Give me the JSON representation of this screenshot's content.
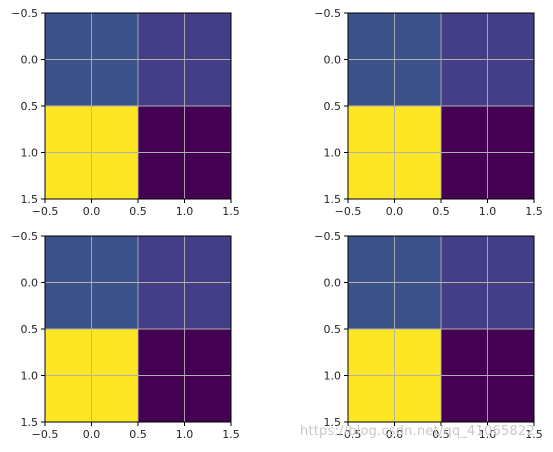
{
  "chart_data": [
    {
      "type": "heatmap",
      "title": "",
      "xlabel": "",
      "ylabel": "",
      "xlim": [
        -0.5,
        1.5
      ],
      "ylim": [
        1.5,
        -0.5
      ],
      "grid": true,
      "colormap": "viridis",
      "values": [
        [
          1,
          2
        ],
        [
          4,
          0
        ]
      ],
      "cell_colors": [
        [
          "#3b528b",
          "#433e85"
        ],
        [
          "#fde725",
          "#440154"
        ]
      ],
      "xticks": [
        "−0.5",
        "0.0",
        "0.5",
        "1.0",
        "1.5"
      ],
      "yticks": [
        "−0.5",
        "0.0",
        "0.5",
        "1.0",
        "1.5"
      ]
    },
    {
      "type": "heatmap",
      "title": "",
      "xlabel": "",
      "ylabel": "",
      "xlim": [
        -0.5,
        1.5
      ],
      "ylim": [
        1.5,
        -0.5
      ],
      "grid": true,
      "colormap": "viridis",
      "values": [
        [
          1,
          2
        ],
        [
          4,
          0
        ]
      ],
      "cell_colors": [
        [
          "#3b528b",
          "#433e85"
        ],
        [
          "#fde725",
          "#440154"
        ]
      ],
      "xticks": [
        "−0.5",
        "0.0",
        "0.5",
        "1.0",
        "1.5"
      ],
      "yticks": [
        "−0.5",
        "0.0",
        "0.5",
        "1.0",
        "1.5"
      ]
    },
    {
      "type": "heatmap",
      "title": "",
      "xlabel": "",
      "ylabel": "",
      "xlim": [
        -0.5,
        1.5
      ],
      "ylim": [
        1.5,
        -0.5
      ],
      "grid": true,
      "colormap": "viridis",
      "values": [
        [
          1,
          2
        ],
        [
          4,
          0
        ]
      ],
      "cell_colors": [
        [
          "#3b528b",
          "#433e85"
        ],
        [
          "#fde725",
          "#440154"
        ]
      ],
      "xticks": [
        "−0.5",
        "0.0",
        "0.5",
        "1.0",
        "1.5"
      ],
      "yticks": [
        "−0.5",
        "0.0",
        "0.5",
        "1.0",
        "1.5"
      ]
    },
    {
      "type": "heatmap",
      "title": "",
      "xlabel": "",
      "ylabel": "",
      "xlim": [
        -0.5,
        1.5
      ],
      "ylim": [
        1.5,
        -0.5
      ],
      "grid": true,
      "colormap": "viridis",
      "values": [
        [
          1,
          2
        ],
        [
          4,
          0
        ]
      ],
      "cell_colors": [
        [
          "#3b528b",
          "#433e85"
        ],
        [
          "#fde725",
          "#440154"
        ]
      ],
      "xticks": [
        "−0.5",
        "0.0",
        "0.5",
        "1.0",
        "1.5"
      ],
      "yticks": [
        "−0.5",
        "0.0",
        "0.5",
        "1.0",
        "1.5"
      ]
    }
  ],
  "watermark": "https://blog.csdn.net/qq_41065822"
}
